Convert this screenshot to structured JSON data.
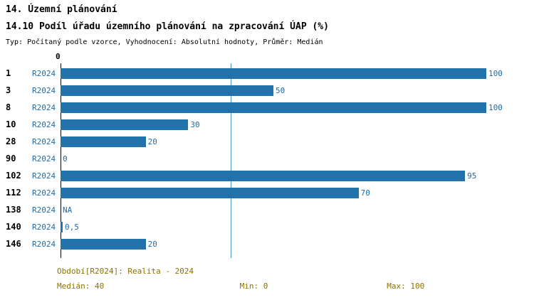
{
  "header": {
    "title": "14. Územní plánování",
    "subtitle": "14.10 Podíl úřadu územního plánování na zpracování ÚAP (%)",
    "meta": "Typ: Počítaný podle vzorce, Vyhodnocení: Absolutní hodnoty, Průměr: Medián"
  },
  "axis": {
    "zero_label": "0"
  },
  "chart_data": {
    "type": "bar",
    "orientation": "horizontal",
    "title": "14.10 Podíl úřadu územního plánování na zpracování ÚAP (%)",
    "categories": [
      "1",
      "3",
      "8",
      "10",
      "28",
      "90",
      "102",
      "112",
      "138",
      "140",
      "146"
    ],
    "series": [
      {
        "name": "R2024",
        "values": [
          100,
          50,
          100,
          30,
          20,
          0,
          95,
          70,
          null,
          0.5,
          20
        ],
        "value_labels": [
          "100",
          "50",
          "100",
          "30",
          "20",
          "0",
          "95",
          "70",
          "NA",
          "0,5",
          "20"
        ]
      }
    ],
    "xlim": [
      0,
      100
    ],
    "median_reference_line": 40,
    "bar_color": "#2273ab",
    "median_line_color": "#4a94c6",
    "legend_position": "none",
    "grid": false
  },
  "footer": {
    "period": "Období[R2024]: Realita - 2024",
    "median": "Medián: 40",
    "min": "Min: 0",
    "max": "Max: 100"
  }
}
